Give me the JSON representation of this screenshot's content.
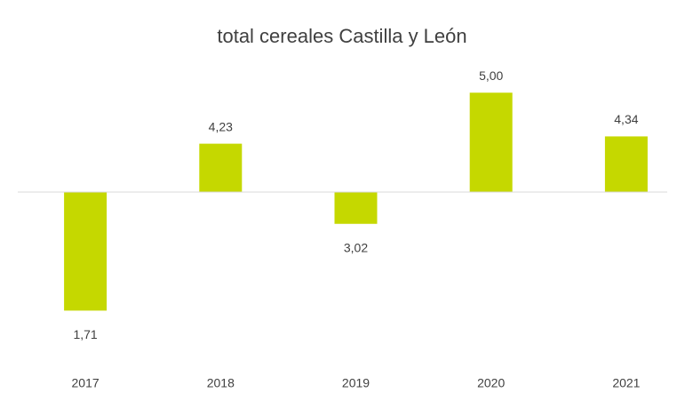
{
  "chart_data": {
    "type": "bar",
    "title": "total cereales Castilla y León",
    "categories": [
      "2017",
      "2018",
      "2019",
      "2020",
      "2021"
    ],
    "values": [
      1.71,
      4.23,
      3.02,
      5.0,
      4.34
    ],
    "value_labels": [
      "1,71",
      "4,23",
      "3,02",
      "5,00",
      "4,34"
    ],
    "color": "#c5d800",
    "baseline": 3.5,
    "ylim": [
      1.5,
      5.25
    ]
  }
}
